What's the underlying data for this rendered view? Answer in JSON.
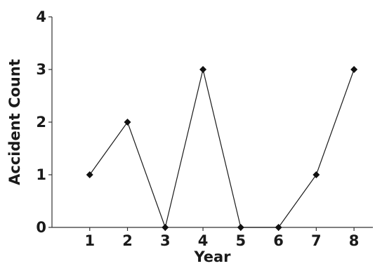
{
  "chart_data": {
    "type": "line",
    "title": "",
    "xlabel": "Year",
    "ylabel": "Accident Count",
    "x": [
      1,
      2,
      3,
      4,
      5,
      6,
      7,
      8
    ],
    "x_tick_labels": [
      "1",
      "2",
      "3",
      "4",
      "5",
      "6",
      "7",
      "8"
    ],
    "y_tick_labels": [
      "0",
      "1",
      "2",
      "3",
      "4"
    ],
    "xlim": [
      0,
      8.5
    ],
    "ylim": [
      0,
      4
    ],
    "grid": false,
    "marker": "diamond",
    "series": [
      {
        "values": [
          1,
          2,
          0,
          3,
          0,
          0,
          1,
          3
        ]
      }
    ],
    "colors": {
      "line": "#1a1a1a",
      "marker": "#111111",
      "axis": "#333333",
      "text": "#1a1a1a"
    }
  }
}
